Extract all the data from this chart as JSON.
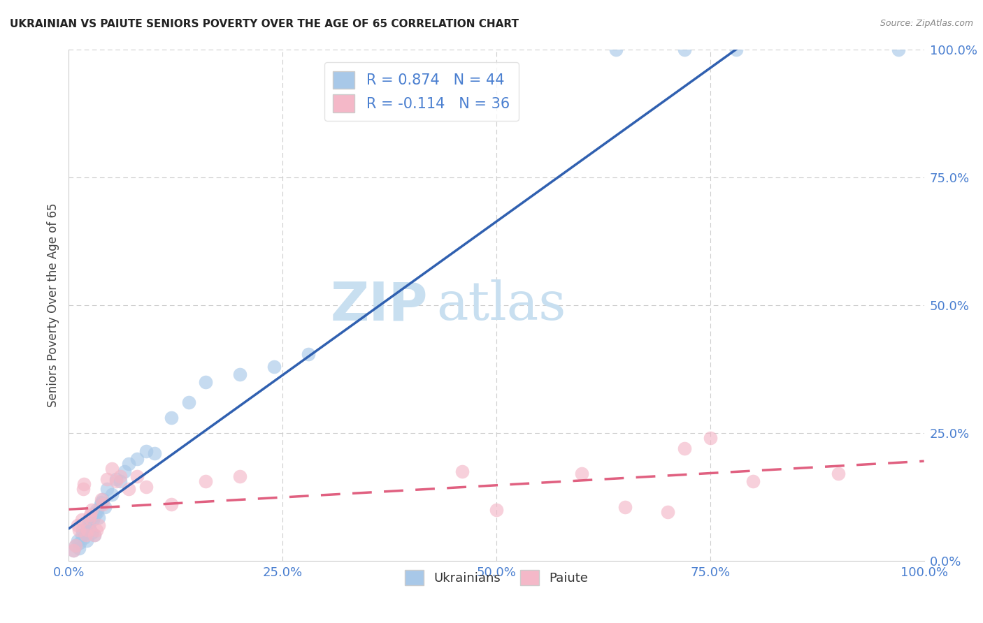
{
  "title": "UKRAINIAN VS PAIUTE SENIORS POVERTY OVER THE AGE OF 65 CORRELATION CHART",
  "source": "Source: ZipAtlas.com",
  "ylabel": "Seniors Poverty Over the Age of 65",
  "xlim": [
    0,
    1
  ],
  "ylim": [
    0,
    1
  ],
  "xticks": [
    0,
    0.25,
    0.5,
    0.75,
    1.0
  ],
  "yticks": [
    0,
    0.25,
    0.5,
    0.75,
    1.0
  ],
  "xtick_labels": [
    "0.0%",
    "25.0%",
    "50.0%",
    "75.0%",
    "100.0%"
  ],
  "ytick_labels": [
    "0.0%",
    "25.0%",
    "50.0%",
    "75.0%",
    "100.0%"
  ],
  "ukrainian_color": "#a8c8e8",
  "paiute_color": "#f4b8c8",
  "ukrainian_line_color": "#3060b0",
  "paiute_line_color": "#e06080",
  "ukrainian_R": 0.874,
  "ukrainian_N": 44,
  "paiute_R": -0.114,
  "paiute_N": 36,
  "legend_label_1": "Ukrainians",
  "legend_label_2": "Paiute",
  "background_color": "#ffffff",
  "watermark_zip": "ZIP",
  "watermark_atlas": "atlas",
  "watermark_color": "#c8dff0",
  "grid_color": "#cccccc",
  "tick_color": "#4a7fd0",
  "title_color": "#222222",
  "ylabel_color": "#444444",
  "ukr_x": [
    0.005,
    0.008,
    0.01,
    0.012,
    0.013,
    0.015,
    0.016,
    0.018,
    0.02,
    0.021,
    0.022,
    0.023,
    0.024,
    0.025,
    0.027,
    0.028,
    0.03,
    0.031,
    0.032,
    0.033,
    0.035,
    0.037,
    0.038,
    0.04,
    0.042,
    0.045,
    0.05,
    0.055,
    0.06,
    0.065,
    0.07,
    0.08,
    0.09,
    0.1,
    0.12,
    0.14,
    0.16,
    0.2,
    0.24,
    0.28,
    0.64,
    0.72,
    0.78,
    0.97
  ],
  "ukr_y": [
    0.02,
    0.03,
    0.04,
    0.025,
    0.035,
    0.05,
    0.06,
    0.045,
    0.055,
    0.04,
    0.07,
    0.065,
    0.075,
    0.06,
    0.055,
    0.08,
    0.05,
    0.09,
    0.1,
    0.095,
    0.085,
    0.11,
    0.115,
    0.12,
    0.105,
    0.14,
    0.13,
    0.16,
    0.155,
    0.175,
    0.19,
    0.2,
    0.215,
    0.21,
    0.28,
    0.31,
    0.35,
    0.365,
    0.38,
    0.405,
    1.0,
    1.0,
    1.0,
    1.0
  ],
  "pai_x": [
    0.005,
    0.008,
    0.01,
    0.012,
    0.015,
    0.017,
    0.018,
    0.02,
    0.022,
    0.024,
    0.025,
    0.027,
    0.03,
    0.032,
    0.035,
    0.038,
    0.04,
    0.045,
    0.05,
    0.055,
    0.06,
    0.07,
    0.08,
    0.09,
    0.12,
    0.16,
    0.2,
    0.46,
    0.5,
    0.6,
    0.65,
    0.7,
    0.72,
    0.75,
    0.8,
    0.9
  ],
  "pai_y": [
    0.02,
    0.03,
    0.07,
    0.06,
    0.08,
    0.14,
    0.15,
    0.05,
    0.06,
    0.085,
    0.09,
    0.1,
    0.05,
    0.06,
    0.07,
    0.12,
    0.11,
    0.16,
    0.18,
    0.155,
    0.165,
    0.14,
    0.165,
    0.145,
    0.11,
    0.155,
    0.165,
    0.175,
    0.1,
    0.17,
    0.105,
    0.095,
    0.22,
    0.24,
    0.155,
    0.17
  ]
}
